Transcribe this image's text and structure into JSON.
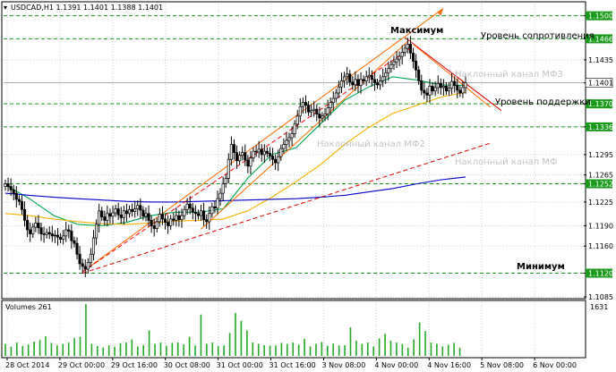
{
  "header": {
    "symbol_info": "USDCAD,H1  1.1391 1.1401 1.1388 1.1401"
  },
  "volume_panel": {
    "label": "Volumes 261",
    "max_label": "1631"
  },
  "annotations": {
    "maximum": "Максимум",
    "minimum": "Минимум",
    "resistance": "Уровень сопротивления",
    "support": "Уровень поддержки",
    "channel_mf3": "Наклонный канал МФ3",
    "channel_mf2": "Наклонный канал МФ2",
    "channel_mf": "Наклонный канал МФ"
  },
  "chart_data": {
    "type": "candlestick",
    "instrument": "USDCAD",
    "timeframe": "H1",
    "last_ohlc": {
      "open": 1.1391,
      "high": 1.1401,
      "low": 1.1388,
      "close": 1.1401
    },
    "current_price": 1.1401,
    "ylim": [
      1.1085,
      1.1518
    ],
    "grid": true,
    "y_ticks": [
      1.15,
      1.1466,
      1.1435,
      1.1401,
      1.137,
      1.1336,
      1.1295,
      1.1265,
      1.1252,
      1.1225,
      1.119,
      1.116,
      1.112,
      1.1085
    ],
    "levels": [
      {
        "value": 1.15,
        "role": "resistance-top"
      },
      {
        "value": 1.1466,
        "role": "resistance"
      },
      {
        "value": 1.137,
        "role": "support"
      },
      {
        "value": 1.1336,
        "role": "level"
      },
      {
        "value": 1.1252,
        "role": "level"
      },
      {
        "value": 1.112,
        "role": "minimum"
      }
    ],
    "x_tick_labels": [
      "28 Oct 2014",
      "29 Oct 00:00",
      "29 Oct 16:00",
      "30 Oct 08:00",
      "31 Oct 00:00",
      "31 Oct 16:00",
      "3 Nov 08:00",
      "4 Nov 00:00",
      "4 Nov 16:00",
      "5 Nov 08:00",
      "6 Nov 00:00"
    ],
    "close_series": [
      1.1252,
      1.1248,
      1.1243,
      1.1238,
      1.1229,
      1.1226,
      1.1214,
      1.1198,
      1.1184,
      1.1178,
      1.1188,
      1.1194,
      1.1187,
      1.1178,
      1.1177,
      1.118,
      1.1178,
      1.1175,
      1.1176,
      1.1173,
      1.117,
      1.1175,
      1.1184,
      1.1182,
      1.1168,
      1.1164,
      1.1148,
      1.1134,
      1.113,
      1.1126,
      1.1136,
      1.1148,
      1.1172,
      1.1192,
      1.1212,
      1.1203,
      1.1198,
      1.1208,
      1.1204,
      1.1209,
      1.1215,
      1.1206,
      1.1202,
      1.1212,
      1.1208,
      1.1214,
      1.1211,
      1.1215,
      1.122,
      1.1213,
      1.1204,
      1.1208,
      1.1198,
      1.119,
      1.1186,
      1.1196,
      1.1207,
      1.12,
      1.1195,
      1.119,
      1.12,
      1.1198,
      1.1205,
      1.1199,
      1.1205,
      1.1214,
      1.1222,
      1.1216,
      1.121,
      1.1208,
      1.1205,
      1.1212,
      1.1199,
      1.1196,
      1.1208,
      1.1218,
      1.1216,
      1.123,
      1.1238,
      1.1252,
      1.126,
      1.1288,
      1.131,
      1.1298,
      1.1286,
      1.1294,
      1.1298,
      1.1287,
      1.1278,
      1.129,
      1.13,
      1.1299,
      1.1303,
      1.1295,
      1.13,
      1.1297,
      1.1293,
      1.1288,
      1.1283,
      1.1292,
      1.1304,
      1.131,
      1.1316,
      1.132,
      1.1326,
      1.134,
      1.1352,
      1.1366,
      1.1372,
      1.1368,
      1.1358,
      1.136,
      1.1362,
      1.1355,
      1.1349,
      1.1352,
      1.1355,
      1.1364,
      1.1372,
      1.1378,
      1.1386,
      1.1395,
      1.1404,
      1.141,
      1.1414,
      1.1402,
      1.1398,
      1.1406,
      1.1397,
      1.1406,
      1.1404,
      1.141,
      1.1412,
      1.1406,
      1.1401,
      1.1398,
      1.1404,
      1.141,
      1.1416,
      1.1422,
      1.1428,
      1.1432,
      1.1436,
      1.144,
      1.1446,
      1.1452,
      1.1458,
      1.1445,
      1.1433,
      1.142,
      1.1404,
      1.139,
      1.1386,
      1.1383,
      1.1396,
      1.1389,
      1.1394,
      1.14,
      1.1394,
      1.1396,
      1.1389,
      1.1393,
      1.1403,
      1.1397,
      1.139,
      1.1386,
      1.1394,
      1.1401
    ],
    "moving_averages": [
      {
        "color": "#00a651",
        "values": [
          1.125,
          1.123,
          1.1205,
          1.1192,
          1.119,
          1.1195,
          1.1205,
          1.121,
          1.121,
          1.1215,
          1.126,
          1.1295,
          1.1305,
          1.134,
          1.1375,
          1.1395,
          1.141,
          1.1405,
          1.1398,
          1.1397
        ]
      },
      {
        "color": "#f7b000",
        "values": [
          1.1208,
          1.1205,
          1.12,
          1.1196,
          1.1193,
          1.1192,
          1.1194,
          1.1197,
          1.1198,
          1.12,
          1.1212,
          1.1232,
          1.1255,
          1.128,
          1.131,
          1.1335,
          1.1356,
          1.1368,
          1.138,
          1.1387
        ]
      },
      {
        "color": "#0000cc",
        "values": [
          1.1238,
          1.1235,
          1.1232,
          1.123,
          1.1228,
          1.1226,
          1.1225,
          1.1225,
          1.1226,
          1.1227,
          1.1228,
          1.1229,
          1.123,
          1.1232,
          1.1235,
          1.124,
          1.1245,
          1.1252,
          1.1258,
          1.1262
        ]
      }
    ],
    "volume_max": 1631,
    "volume_last": 261,
    "volumes": [
      380,
      290,
      420,
      310,
      360,
      450,
      500,
      620,
      410,
      330,
      380,
      420,
      560,
      600,
      1631,
      380,
      310,
      260,
      330,
      290,
      400,
      420,
      520,
      300,
      340,
      800,
      380,
      420,
      320,
      410,
      420,
      360,
      600,
      330,
      1300,
      380,
      420,
      310,
      330,
      720,
      1350,
      1100,
      800,
      420,
      380,
      340,
      320,
      330,
      410,
      380,
      420,
      350,
      540,
      300,
      380,
      440,
      320,
      390,
      330,
      340,
      900,
      480,
      380,
      420,
      300,
      550,
      700,
      480,
      420,
      380,
      260,
      520,
      1050,
      780,
      420,
      380,
      300,
      350,
      410,
      260
    ],
    "trend_lines": [
      {
        "label": "Наклонный канал МФ3",
        "color": "#ff6a00",
        "style": "solid"
      },
      {
        "label": "Наклонный канал МФ2",
        "color": "#ff0000",
        "style": "dashed"
      },
      {
        "label": "Наклонный канал МФ",
        "color": "#dd0000",
        "style": "dashed"
      }
    ],
    "colors": {
      "bullish": "#000000",
      "bearish": "#000000",
      "level_box": "#1a9a1a",
      "level_line": "#1a9a1a",
      "grid": "#d0d0d0"
    }
  }
}
